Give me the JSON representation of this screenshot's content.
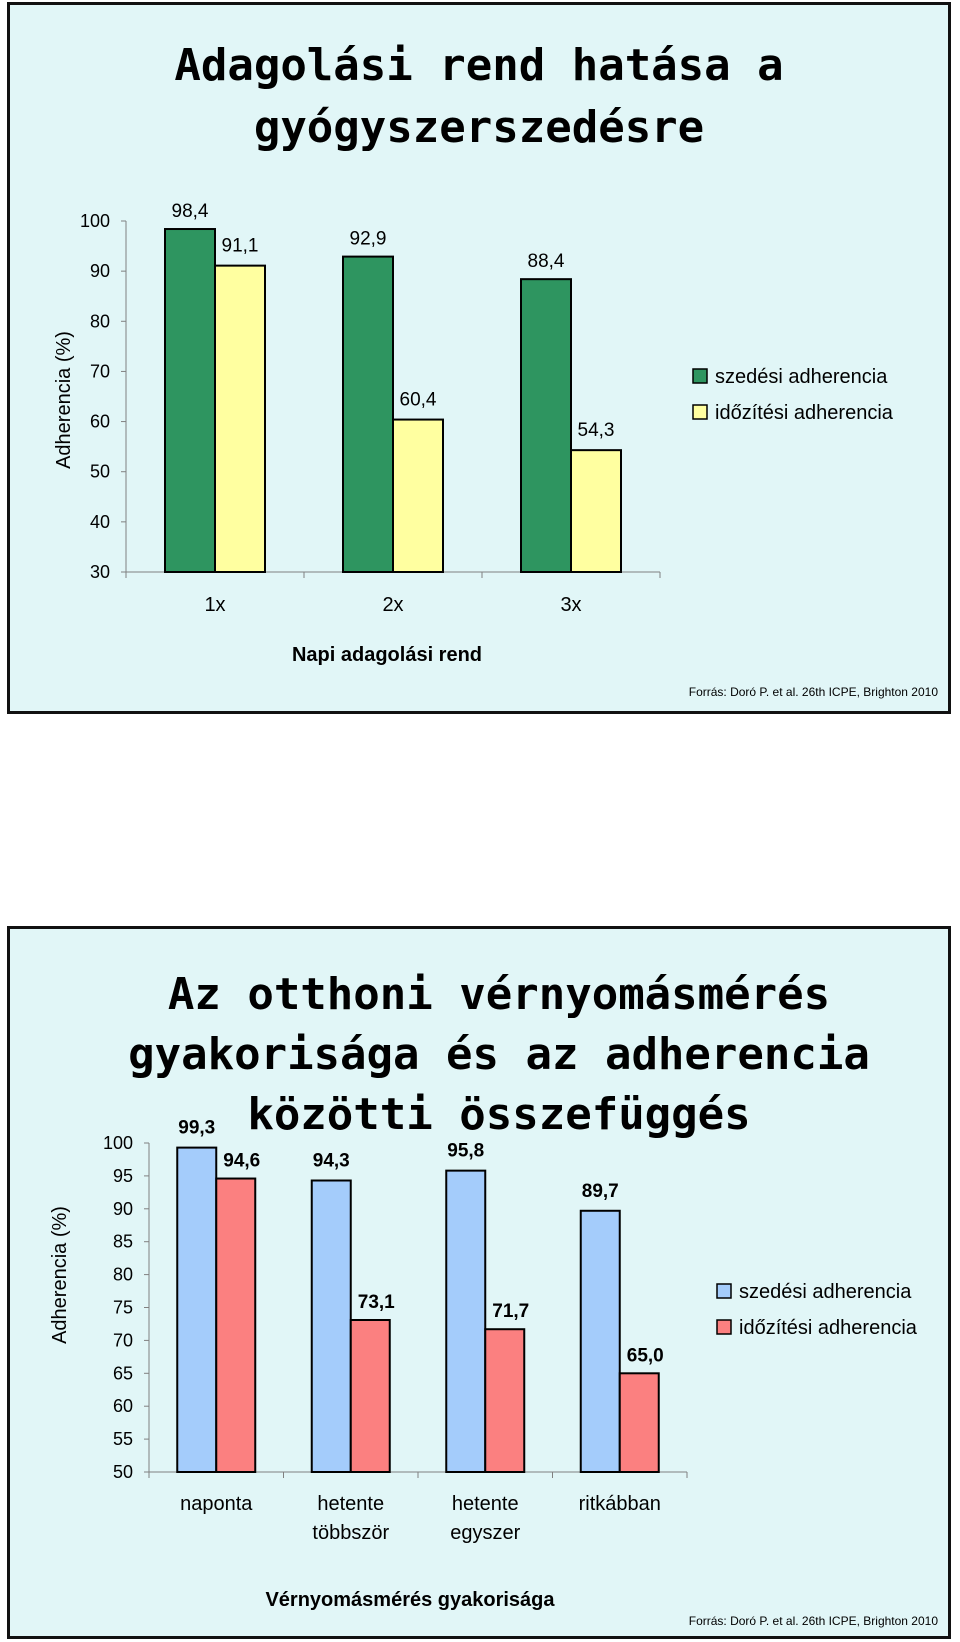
{
  "chart_data": [
    {
      "type": "bar",
      "title": "Adagolási rend hatása a gyógyszerszedésre",
      "xlabel": "Napi adagolási rend",
      "ylabel": "Adherencia (%)",
      "ylim": [
        30,
        100
      ],
      "yticks": [
        30,
        40,
        50,
        60,
        70,
        80,
        90,
        100
      ],
      "categories": [
        "1x",
        "2x",
        "3x"
      ],
      "series": [
        {
          "name": "szedési adherencia",
          "color": "#2e9560",
          "values": [
            98.4,
            92.9,
            88.4
          ],
          "labels": [
            "98,4",
            "92,9",
            "88,4"
          ]
        },
        {
          "name": "időzítési adherencia",
          "color": "#ffffa0",
          "values": [
            91.1,
            60.4,
            54.3
          ],
          "labels": [
            "91,1",
            "60,4",
            "54,3"
          ]
        }
      ],
      "legend": "right",
      "grid": false,
      "source": "Forrás: Doró P. et al. 26th ICPE, Brighton 2010"
    },
    {
      "type": "bar",
      "title": "Az otthoni vérnyomásmérés gyakorisága és az adherencia közötti összefüggés",
      "xlabel": "Vérnyomásmérés gyakorisága",
      "ylabel": "Adherencia (%)",
      "ylim": [
        50,
        100
      ],
      "yticks": [
        50,
        55,
        60,
        65,
        70,
        75,
        80,
        85,
        90,
        95,
        100
      ],
      "categories": [
        "naponta",
        "hetente többször",
        "hetente egyszer",
        "ritkábban"
      ],
      "series": [
        {
          "name": "szedési adherencia",
          "color": "#a4ccfb",
          "values": [
            99.3,
            94.3,
            95.8,
            89.7
          ],
          "labels": [
            "99,3",
            "94,3",
            "95,8",
            "89,7"
          ]
        },
        {
          "name": "időzítési adherencia",
          "color": "#fb8080",
          "values": [
            94.6,
            73.1,
            71.7,
            65.0
          ],
          "labels": [
            "94,6",
            "73,1",
            "71,7",
            "65,0"
          ]
        }
      ],
      "legend": "right",
      "grid": false,
      "source": "Forrás: Doró P. et al. 26th ICPE, Brighton 2010"
    }
  ]
}
